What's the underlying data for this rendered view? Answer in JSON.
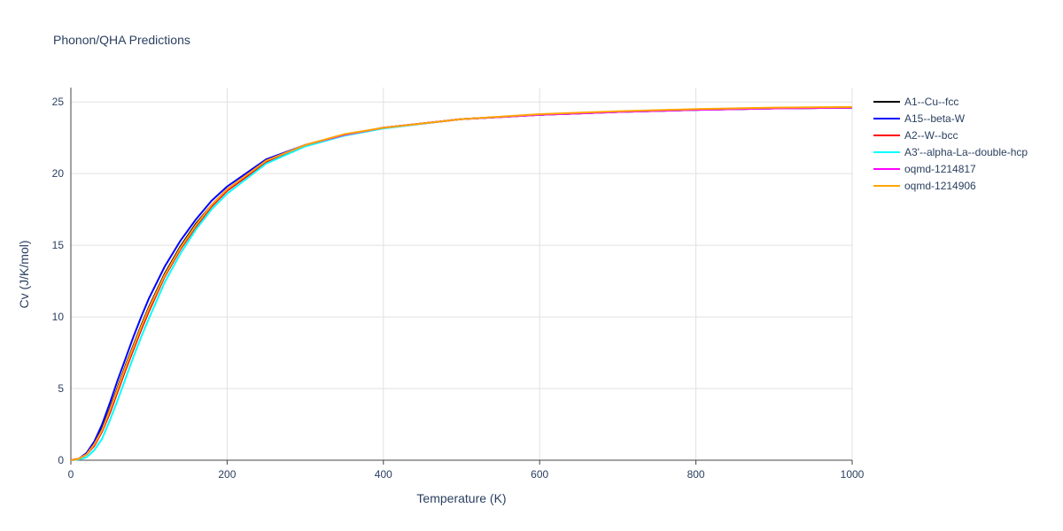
{
  "chart_data": {
    "type": "line",
    "title": "Phonon/QHA Predictions",
    "x_label": "Temperature (K)",
    "y_label": "Cv (J/K/mol)",
    "x": [
      0,
      10,
      20,
      30,
      40,
      50,
      60,
      70,
      80,
      90,
      100,
      120,
      140,
      160,
      180,
      200,
      250,
      300,
      350,
      400,
      500,
      600,
      700,
      800,
      900,
      1000
    ],
    "series": [
      {
        "name": "A1--Cu--fcc",
        "color": "#000000",
        "values": [
          0,
          0.1,
          0.4,
          1.1,
          2.2,
          3.6,
          5.1,
          6.6,
          8.0,
          9.4,
          10.7,
          13.0,
          14.9,
          16.5,
          17.8,
          18.9,
          20.9,
          22.0,
          22.7,
          23.2,
          23.8,
          24.1,
          24.3,
          24.45,
          24.55,
          24.6
        ]
      },
      {
        "name": "A15--beta-W",
        "color": "#0000ff",
        "values": [
          0,
          0.1,
          0.5,
          1.3,
          2.5,
          4.0,
          5.6,
          7.1,
          8.6,
          10.0,
          11.3,
          13.5,
          15.3,
          16.8,
          18.1,
          19.1,
          21.0,
          22.0,
          22.7,
          23.2,
          23.8,
          24.1,
          24.3,
          24.45,
          24.55,
          24.6
        ]
      },
      {
        "name": "A2--W--bcc",
        "color": "#ff0000",
        "values": [
          0,
          0.1,
          0.4,
          1.0,
          2.0,
          3.3,
          4.8,
          6.3,
          7.7,
          9.1,
          10.4,
          12.8,
          14.7,
          16.3,
          17.7,
          18.8,
          20.8,
          21.95,
          22.7,
          23.2,
          23.8,
          24.1,
          24.3,
          24.45,
          24.55,
          24.6
        ]
      },
      {
        "name": "A3'--alpha-La--double-hcp",
        "color": "#00ffff",
        "values": [
          0,
          0.05,
          0.2,
          0.7,
          1.5,
          2.8,
          4.2,
          5.7,
          7.2,
          8.6,
          9.9,
          12.4,
          14.4,
          16.1,
          17.5,
          18.6,
          20.7,
          21.9,
          22.65,
          23.15,
          23.8,
          24.1,
          24.3,
          24.45,
          24.55,
          24.6
        ]
      },
      {
        "name": "oqmd-1214817",
        "color": "#ff00ff",
        "values": [
          0,
          0.1,
          0.4,
          1.1,
          2.1,
          3.5,
          5.0,
          6.5,
          7.9,
          9.3,
          10.6,
          12.9,
          14.8,
          16.4,
          17.8,
          18.9,
          20.9,
          22.0,
          22.7,
          23.2,
          23.8,
          24.1,
          24.3,
          24.45,
          24.55,
          24.6
        ]
      },
      {
        "name": "oqmd-1214906",
        "color": "#ffa500",
        "values": [
          0,
          0.1,
          0.4,
          1.1,
          2.1,
          3.5,
          5.0,
          6.5,
          7.9,
          9.3,
          10.6,
          12.9,
          14.8,
          16.4,
          17.8,
          18.9,
          20.9,
          22.0,
          22.75,
          23.2,
          23.8,
          24.15,
          24.35,
          24.5,
          24.6,
          24.65
        ]
      }
    ],
    "xlim": [
      0,
      1000
    ],
    "xticks": [
      0,
      200,
      400,
      600,
      800,
      1000
    ],
    "ylim": [
      0,
      26
    ],
    "yticks": [
      0,
      5,
      10,
      15,
      20,
      25
    ],
    "grid": true
  }
}
